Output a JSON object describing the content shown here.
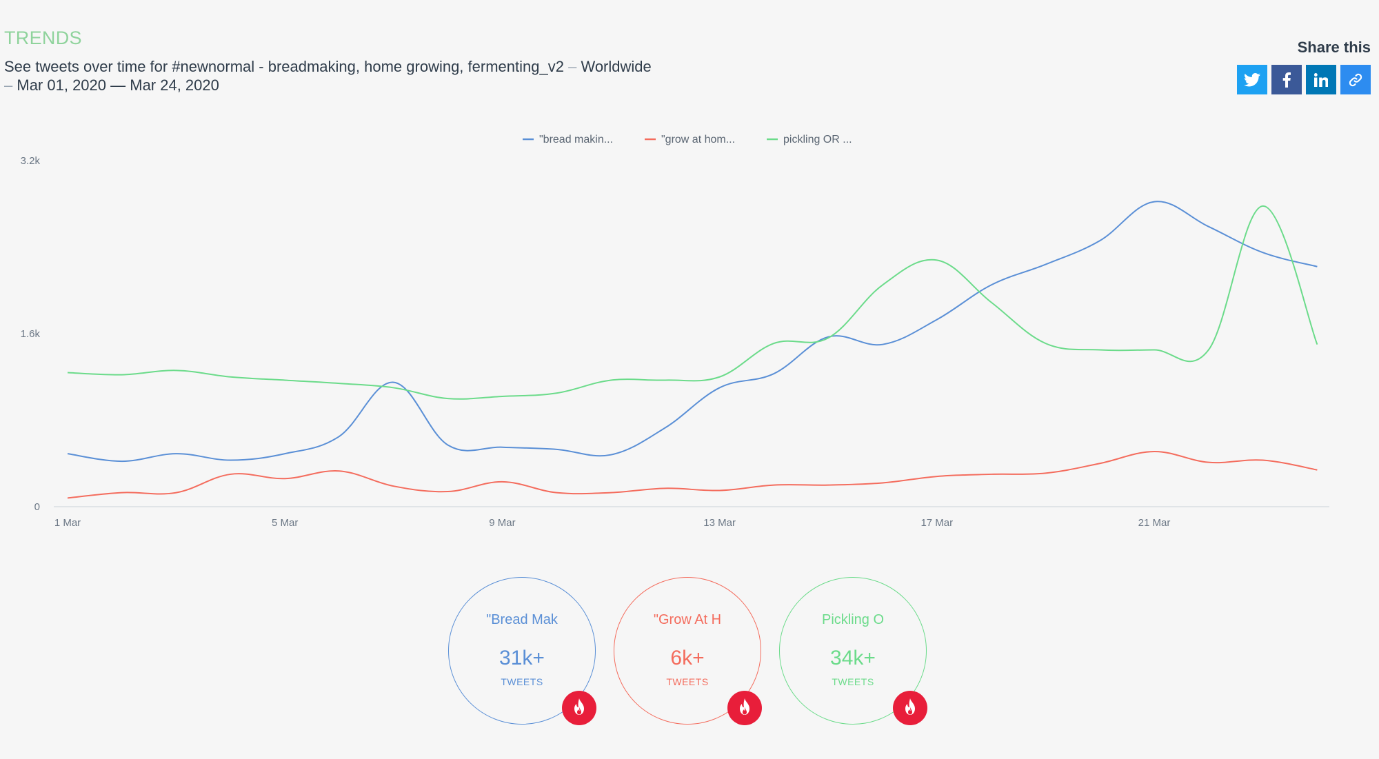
{
  "header": {
    "title": "TRENDS",
    "subtitle_main": "See tweets over time for #newnormal - breadmaking, home growing, fermenting_v2",
    "subtitle_sep1": "–",
    "subtitle_region": "Worldwide",
    "subtitle_sep2": "–",
    "subtitle_dates": "Mar 01, 2020 — Mar 24, 2020"
  },
  "share": {
    "label": "Share this",
    "buttons": [
      "twitter-icon",
      "facebook-icon",
      "linkedin-icon",
      "link-icon"
    ],
    "colors": [
      "#1da1f2",
      "#3b5998",
      "#0077b5",
      "#2d8cf0"
    ]
  },
  "chart_data": {
    "type": "line",
    "x": [
      "1 Mar",
      "2 Mar",
      "3 Mar",
      "4 Mar",
      "5 Mar",
      "6 Mar",
      "7 Mar",
      "8 Mar",
      "9 Mar",
      "10 Mar",
      "11 Mar",
      "12 Mar",
      "13 Mar",
      "14 Mar",
      "15 Mar",
      "16 Mar",
      "17 Mar",
      "18 Mar",
      "19 Mar",
      "20 Mar",
      "21 Mar",
      "22 Mar",
      "23 Mar",
      "24 Mar"
    ],
    "x_ticks": [
      "1 Mar",
      "5 Mar",
      "9 Mar",
      "13 Mar",
      "17 Mar",
      "21 Mar"
    ],
    "y_ticks": [
      "0",
      "1.6k",
      "3.2k"
    ],
    "ylim": [
      0,
      3200
    ],
    "legend_position": "top-center",
    "grid": false,
    "series": [
      {
        "name": "\"bread makin...",
        "color": "#5a8fd6",
        "values": [
          490,
          420,
          490,
          430,
          490,
          650,
          1150,
          570,
          550,
          530,
          480,
          730,
          1100,
          1230,
          1570,
          1500,
          1730,
          2050,
          2240,
          2460,
          2820,
          2590,
          2350,
          2220
        ]
      },
      {
        "name": "\"grow at hom...",
        "color": "#f46c5d",
        "values": [
          80,
          130,
          130,
          300,
          260,
          330,
          190,
          140,
          230,
          130,
          130,
          170,
          150,
          200,
          200,
          220,
          280,
          300,
          310,
          400,
          510,
          410,
          430,
          340
        ]
      },
      {
        "name": "pickling OR ...",
        "color": "#6bdb8a",
        "values": [
          1240,
          1220,
          1260,
          1200,
          1170,
          1140,
          1100,
          1000,
          1020,
          1050,
          1170,
          1170,
          1200,
          1510,
          1560,
          2050,
          2280,
          1890,
          1510,
          1450,
          1450,
          1450,
          2780,
          1500
        ]
      }
    ]
  },
  "kpis": [
    {
      "label": "\"Bread Mak",
      "value": "31k+",
      "unit": "TWEETS",
      "color": "#5a8fd6"
    },
    {
      "label": "\"Grow At H",
      "value": "6k+",
      "unit": "TWEETS",
      "color": "#f46c5d"
    },
    {
      "label": "Pickling O",
      "value": "34k+",
      "unit": "TWEETS",
      "color": "#6bdb8a"
    }
  ]
}
